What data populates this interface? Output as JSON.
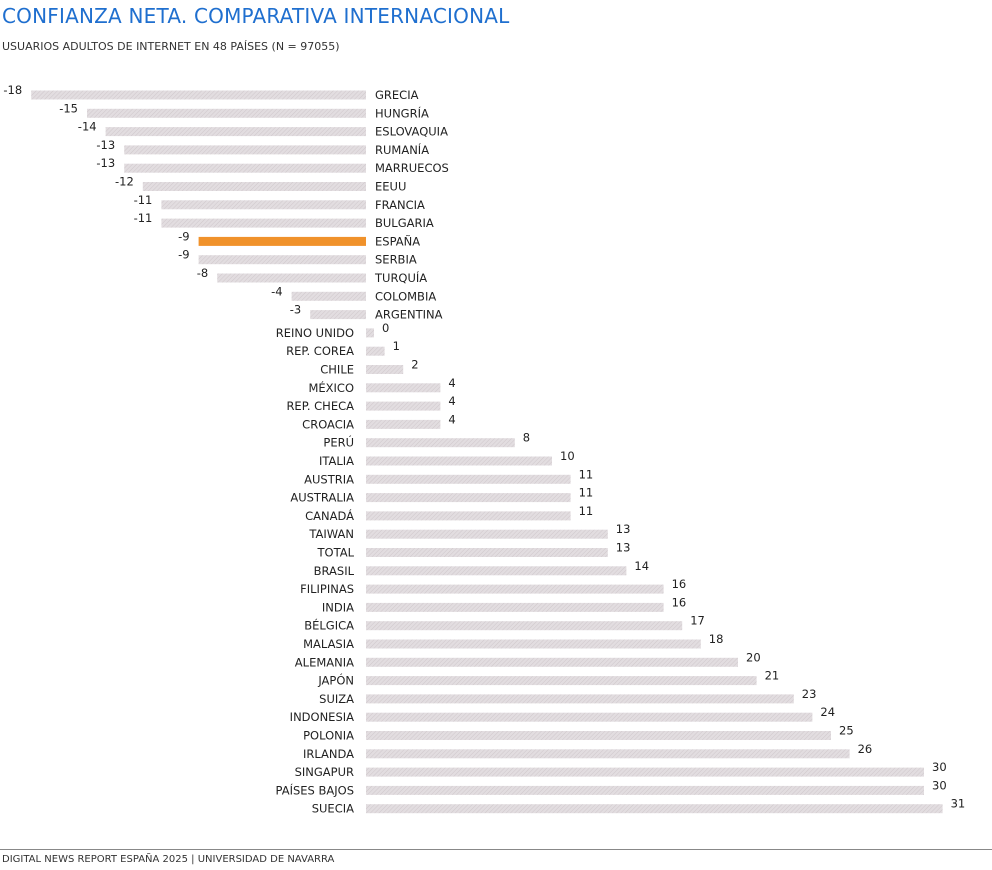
{
  "header": {
    "title": "CONFIANZA NETA. COMPARATIVA INTERNACIONAL",
    "subtitle": "USUARIOS ADULTOS DE INTERNET EN 48 PAÍSES (N = 97055)"
  },
  "footer": {
    "source": "DIGITAL NEWS REPORT ESPAÑA 2025 | UNIVERSIDAD DE NAVARRA"
  },
  "colors": {
    "bar": "#dcd6d9",
    "highlight": "#f0922b",
    "text": "#222222",
    "title": "#1f6fcf"
  },
  "chart_data": {
    "type": "bar",
    "orientation": "horizontal",
    "title": "CONFIANZA NETA. COMPARATIVA INTERNACIONAL",
    "subtitle": "USUARIOS ADULTOS DE INTERNET EN 48 PAÍSES (N = 97055)",
    "xlabel": "",
    "ylabel": "",
    "xlim": [
      -18,
      31
    ],
    "grid": false,
    "highlight": "ESPAÑA",
    "categories": [
      "GRECIA",
      "HUNGRÍA",
      "ESLOVAQUIA",
      "RUMANÍA",
      "MARRUECOS",
      "EEUU",
      "FRANCIA",
      "BULGARIA",
      "ESPAÑA",
      "SERBIA",
      "TURQUÍA",
      "COLOMBIA",
      "ARGENTINA",
      "REINO UNIDO",
      "REP. COREA",
      "CHILE",
      "MÉXICO",
      "REP. CHECA",
      "CROACIA",
      "PERÚ",
      "ITALIA",
      "AUSTRIA",
      "AUSTRALIA",
      "CANADÁ",
      "TAIWAN",
      "TOTAL",
      "BRASIL",
      "FILIPINAS",
      "INDIA",
      "BÉLGICA",
      "MALASIA",
      "ALEMANIA",
      "JAPÓN",
      "SUIZA",
      "INDONESIA",
      "POLONIA",
      "IRLANDA",
      "SINGAPUR",
      "PAÍSES BAJOS",
      "SUECIA"
    ],
    "values": [
      -18,
      -15,
      -14,
      -13,
      -13,
      -12,
      -11,
      -11,
      -9,
      -9,
      -8,
      -4,
      -3,
      0,
      1,
      2,
      4,
      4,
      4,
      8,
      10,
      11,
      11,
      11,
      13,
      13,
      14,
      16,
      16,
      17,
      18,
      20,
      21,
      23,
      24,
      25,
      26,
      30,
      30,
      31
    ]
  }
}
